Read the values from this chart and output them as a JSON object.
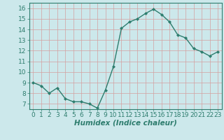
{
  "x": [
    0,
    1,
    2,
    3,
    4,
    5,
    6,
    7,
    8,
    9,
    10,
    11,
    12,
    13,
    14,
    15,
    16,
    17,
    18,
    19,
    20,
    21,
    22,
    23
  ],
  "y": [
    9.0,
    8.7,
    8.0,
    8.5,
    7.5,
    7.2,
    7.2,
    7.0,
    6.6,
    8.3,
    10.5,
    14.1,
    14.7,
    15.0,
    15.5,
    15.9,
    15.4,
    14.7,
    13.5,
    13.2,
    12.2,
    11.9,
    11.5,
    11.9
  ],
  "line_color": "#2e7d6e",
  "marker": "D",
  "marker_size": 2.0,
  "bg_color": "#cce8eb",
  "grid_color": "#b8d4d8",
  "xlabel": "Humidex (Indice chaleur)",
  "ylim": [
    6.5,
    16.5
  ],
  "xlim": [
    -0.5,
    23.5
  ],
  "yticks": [
    7,
    8,
    9,
    10,
    11,
    12,
    13,
    14,
    15,
    16
  ],
  "xticks": [
    0,
    1,
    2,
    3,
    4,
    5,
    6,
    7,
    8,
    9,
    10,
    11,
    12,
    13,
    14,
    15,
    16,
    17,
    18,
    19,
    20,
    21,
    22,
    23
  ],
  "xlabel_fontsize": 7.5,
  "tick_fontsize": 6.5,
  "tick_color": "#2e7d6e",
  "axis_color": "#2e7d6e",
  "line_width": 1.0
}
